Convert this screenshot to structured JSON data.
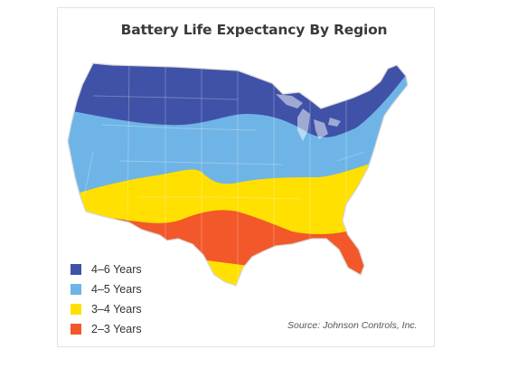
{
  "title": "Battery Life Expectancy By Region",
  "legend": [
    {
      "label": "4–6 Years",
      "color": "#3f52a8"
    },
    {
      "label": "4–5 Years",
      "color": "#6fb4e6"
    },
    {
      "label": "3–4 Years",
      "color": "#ffe000"
    },
    {
      "label": "2–3 Years",
      "color": "#f2582a"
    }
  ],
  "source": "Source: Johnson Controls, Inc.",
  "map": {
    "icon": "us-map-icon",
    "zones": [
      "4–6 Years",
      "4–5 Years",
      "3–4 Years",
      "2–3 Years"
    ]
  }
}
